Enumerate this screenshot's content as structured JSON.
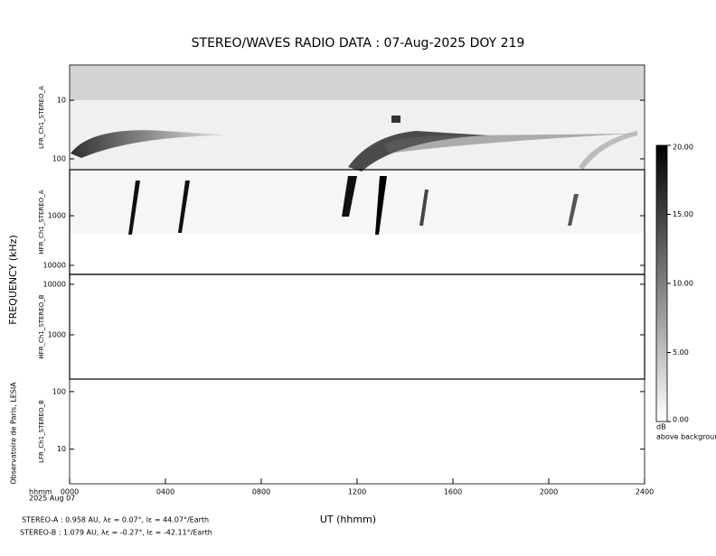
{
  "chart_data": {
    "type": "spectrogram",
    "title": "STEREO/WAVES  RADIO  DATA : 07-Aug-2025  DOY 219",
    "ylabel": "FREQUENCY (kHz)",
    "xlabel": "UT (hhmm)",
    "date_label": [
      "hhmm",
      "2025 Aug 07"
    ],
    "credit": "Observatoire de Paris, LESIA",
    "xlim": [
      0,
      2400
    ],
    "xticks": [
      {
        "value": 0,
        "label": "0000"
      },
      {
        "value": 400,
        "label": "0400"
      },
      {
        "value": 800,
        "label": "0800"
      },
      {
        "value": 1200,
        "label": "1200"
      },
      {
        "value": 1600,
        "label": "1600"
      },
      {
        "value": 2000,
        "label": "2000"
      },
      {
        "value": 2400,
        "label": "2400"
      }
    ],
    "panels": [
      {
        "name": "LFR_Ch1_STEREO_A",
        "log": true,
        "inverted": true,
        "ylim": [
          2.5,
          153
        ],
        "yticks": [
          10,
          100
        ]
      },
      {
        "name": "HFR_Ch1_STEREO_A",
        "log": true,
        "inverted": true,
        "ylim": [
          118,
          15200
        ],
        "yticks": [
          1000,
          10000
        ]
      },
      {
        "name": "HFR_Ch1_STEREO_B",
        "log": true,
        "inverted": false,
        "ylim": [
          133,
          15700
        ],
        "yticks": [
          1000,
          10000
        ]
      },
      {
        "name": "LFR_Ch1_STEREO_B",
        "log": true,
        "inverted": false,
        "ylim": [
          2.5,
          165
        ],
        "yticks": [
          10,
          100
        ]
      }
    ],
    "colorbar": {
      "clim": [
        0,
        20
      ],
      "ticks": [
        {
          "value": 0,
          "label": "0.00"
        },
        {
          "value": 5,
          "label": "5.00"
        },
        {
          "value": 10,
          "label": "10.00"
        },
        {
          "value": 15,
          "label": "15.00"
        },
        {
          "value": 20,
          "label": "20.00"
        }
      ],
      "unit": "dB",
      "caption": "above background"
    },
    "annotations": [
      "STEREO-A : 0.958 AU, λε = 0.07°, lε = 44.07°/Earth",
      "STEREO-B : 1.079 AU, λε = -0.27°, lε = -42.11°/Earth"
    ]
  }
}
